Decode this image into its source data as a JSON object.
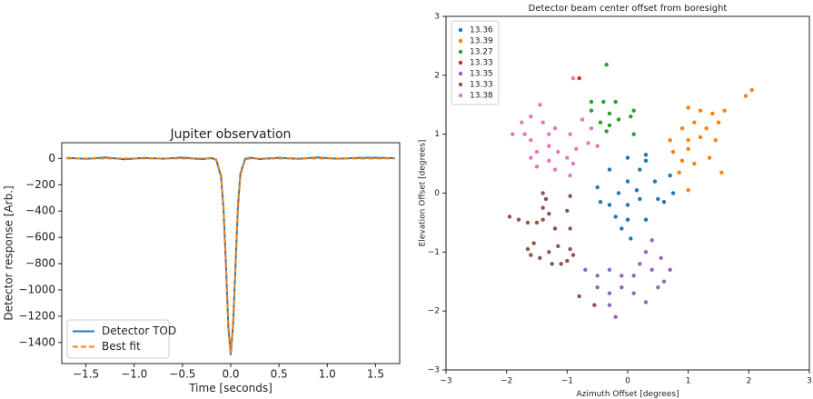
{
  "chart_data": [
    {
      "type": "line",
      "title": "Jupiter observation",
      "xlabel": "Time [seconds]",
      "ylabel": "Detector response [Arb.]",
      "x": [
        -1.7,
        -1.5,
        -1.3,
        -1.1,
        -0.9,
        -0.7,
        -0.5,
        -0.3,
        -0.2,
        -0.15,
        -0.1,
        -0.075,
        -0.05,
        -0.025,
        0,
        0.025,
        0.05,
        0.075,
        0.1,
        0.15,
        0.2,
        0.3,
        0.5,
        0.7,
        0.9,
        1.1,
        1.3,
        1.5,
        1.7
      ],
      "series": [
        {
          "name": "Detector TOD",
          "color": "#1f77b4",
          "linestyle": "solid",
          "values": [
            5,
            -3,
            8,
            -6,
            4,
            -2,
            7,
            -5,
            3,
            -10,
            -140,
            -380,
            -790,
            -1280,
            -1495,
            -1255,
            -810,
            -360,
            -115,
            -2,
            6,
            -4,
            5,
            -3,
            8,
            -2,
            4,
            6,
            2
          ]
        },
        {
          "name": "Best fit",
          "color": "#ff7f0e",
          "linestyle": "dashed",
          "values": [
            0,
            0,
            0,
            0,
            0,
            0,
            0,
            0,
            0,
            -6,
            -126,
            -369,
            -800,
            -1268,
            -1480,
            -1268,
            -800,
            -369,
            -126,
            -6,
            0,
            0,
            0,
            0,
            0,
            0,
            0,
            0,
            0
          ]
        }
      ],
      "xlim": [
        -1.75,
        1.75
      ],
      "xticks": [
        {
          "value": -1.5,
          "label": "−1.5"
        },
        {
          "value": -1,
          "label": "−1.0"
        },
        {
          "value": -0.5,
          "label": "−0.5"
        },
        {
          "value": 0,
          "label": "0.0"
        },
        0.5,
        {
          "value": 1,
          "label": "1.0"
        },
        1.5
      ],
      "ylim": [
        -1560,
        120
      ],
      "yticks": [
        0,
        {
          "value": -200,
          "label": "−200"
        },
        {
          "value": -400,
          "label": "−400"
        },
        {
          "value": -600,
          "label": "−600"
        },
        {
          "value": -800,
          "label": "−800"
        },
        {
          "value": -1000,
          "label": "−1000"
        },
        {
          "value": -1200,
          "label": "−1200"
        },
        {
          "value": -1400,
          "label": "−1400"
        }
      ],
      "legend": "lower left",
      "grid": false
    },
    {
      "type": "scatter",
      "title": "Detector beam center offset from boresight",
      "xlabel": "Azimuth Offset [degrees]",
      "ylabel": "Elevation Offset [degrees]",
      "series": [
        {
          "name": "13.36",
          "color": "#1f77b4",
          "x": [
            -0.5,
            -0.3,
            -0.3,
            0,
            0,
            0,
            0,
            0.2,
            0.2,
            0.3,
            -0.15,
            0.15,
            0.45,
            0.5,
            0.7,
            0.75,
            0.6,
            0.3,
            -0.1,
            0.3,
            -0.45,
            -0.2,
            0.05
          ],
          "values": [
            0.1,
            0.4,
            -0.2,
            0.6,
            0.2,
            -0.2,
            -0.45,
            0.4,
            -0.1,
            -0.45,
            0,
            0.05,
            0.2,
            -0.1,
            0.3,
            0,
            -0.15,
            0.55,
            -0.6,
            0.65,
            -0.15,
            -0.4,
            -0.77
          ]
        },
        {
          "name": "13.39",
          "color": "#ff7f0e",
          "x": [
            1.0,
            1.2,
            1.4,
            1.6,
            1.1,
            1.3,
            1.5,
            1.2,
            1.45,
            1.0,
            0.7,
            0.75,
            0.9,
            0.85,
            1.0,
            1.1,
            0.9,
            1.35,
            1.55,
            1.0,
            1.95,
            2.05
          ],
          "values": [
            1.45,
            1.4,
            1.35,
            1.4,
            1.2,
            1.1,
            1.2,
            0.95,
            0.9,
            0.9,
            0.9,
            0.7,
            0.55,
            0.35,
            0.75,
            0.5,
            1.1,
            0.6,
            0.35,
            0.05,
            1.65,
            1.75
          ]
        },
        {
          "name": "13.27",
          "color": "#2ca02c",
          "x": [
            -0.6,
            -0.4,
            -0.2,
            -0.6,
            -0.3,
            -0.15,
            -0.45,
            -0.35,
            -0.3,
            0.1,
            0.05,
            -0.35,
            0.1
          ],
          "values": [
            1.55,
            1.55,
            1.55,
            1.4,
            1.35,
            1.25,
            1.2,
            1.05,
            1.15,
            1.4,
            1.3,
            2.18,
            1.0
          ]
        },
        {
          "name": "13.33",
          "color": "#d62728",
          "x": [
            -0.8
          ],
          "values": [
            1.95
          ]
        },
        {
          "name": "13.35",
          "color": "#9467bd",
          "x": [
            -0.7,
            -0.5,
            -0.3,
            -0.1,
            -0.5,
            -0.3,
            -0.1,
            -0.3,
            -0.2,
            0.1,
            0.1,
            0.3,
            0.5,
            0.4,
            0.6,
            0.7,
            0.3,
            0.4,
            0.55,
            0.2
          ],
          "values": [
            -1.3,
            -1.4,
            -1.3,
            -1.4,
            -1.6,
            -1.7,
            -1.6,
            -1.9,
            -2.1,
            -1.4,
            -1.7,
            -1.85,
            -1.6,
            -1.3,
            -1.5,
            -1.3,
            -1.0,
            -0.8,
            -1.1,
            -1.2
          ]
        },
        {
          "name": "13.33",
          "color": "#8c564b",
          "x": [
            -1.95,
            -1.8,
            -1.65,
            -1.5,
            -1.4,
            -1.4,
            -1.35,
            -1.4,
            -1.3,
            -1.2,
            -1.65,
            -1.6,
            -1.55,
            -1.45,
            -1.3,
            -1.15,
            -1.1,
            -0.95,
            -0.95,
            -1.0,
            -1.0,
            -0.9,
            -0.8,
            -0.55,
            -0.95,
            -1.25
          ],
          "values": [
            -0.4,
            -0.45,
            -0.5,
            -0.5,
            -0.45,
            0,
            -0.1,
            -0.25,
            -0.35,
            -0.6,
            -0.95,
            -1.05,
            -0.85,
            -1.1,
            -1.0,
            -0.9,
            -1.2,
            -0.95,
            -0.05,
            -0.3,
            -1.15,
            -1.05,
            -1.75,
            -1.9,
            -0.6,
            -1.2
          ]
        },
        {
          "name": "13.38",
          "color": "#e377c2",
          "x": [
            -1.9,
            -1.7,
            -1.6,
            -1.75,
            -1.6,
            -1.45,
            -1.4,
            -1.3,
            -1.2,
            -1.6,
            -1.5,
            -1.5,
            -1.3,
            -1.2,
            -1.15,
            -1.3,
            -0.95,
            -0.85,
            -0.65,
            -0.75,
            -0.6,
            -0.9,
            -0.95,
            -1.0,
            -0.5,
            -0.9
          ],
          "values": [
            1.0,
            1.0,
            0.9,
            1.2,
            1.3,
            1.5,
            1.2,
            1.0,
            1.1,
            0.6,
            0.7,
            0.45,
            0.55,
            0.4,
            0.7,
            0.8,
            1.0,
            0.75,
            0.85,
            1.25,
            1.1,
            0.5,
            0.3,
            0.6,
            0.8,
            1.95
          ]
        }
      ],
      "xlim": [
        -3,
        3
      ],
      "xticks": [
        {
          "value": -3,
          "label": "−3"
        },
        {
          "value": -2,
          "label": "−2"
        },
        {
          "value": -1,
          "label": "−1"
        },
        0,
        1,
        2,
        3
      ],
      "ylim": [
        -3,
        3
      ],
      "yticks": [
        {
          "value": -3,
          "label": "−3"
        },
        {
          "value": -2,
          "label": "−2"
        },
        {
          "value": -1,
          "label": "−1"
        },
        0,
        1,
        2,
        3
      ],
      "legend": "upper left",
      "grid": false
    }
  ]
}
